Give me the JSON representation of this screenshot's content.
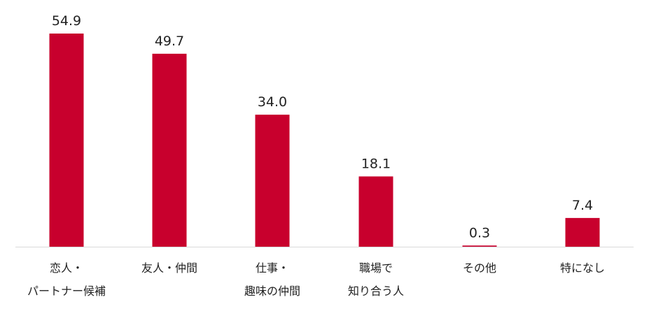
{
  "chart_data": {
    "type": "bar",
    "categories": [
      [
        "恋人・",
        "パートナー候補"
      ],
      [
        "友人・仲間"
      ],
      [
        "仕事・",
        "趣味の仲間"
      ],
      [
        "職場で",
        "知り合う人"
      ],
      [
        "その他"
      ],
      [
        "特になし"
      ]
    ],
    "values": [
      54.9,
      49.7,
      34.0,
      18.1,
      0.3,
      7.4
    ],
    "value_labels": [
      "54.9",
      "49.7",
      "34.0",
      "18.1",
      "0.3",
      "7.4"
    ],
    "ylim": [
      0,
      54.9
    ],
    "grid": false,
    "colors": {
      "bar": "#C8002D",
      "axis": "#d9d9d9",
      "text": "#222222"
    }
  }
}
